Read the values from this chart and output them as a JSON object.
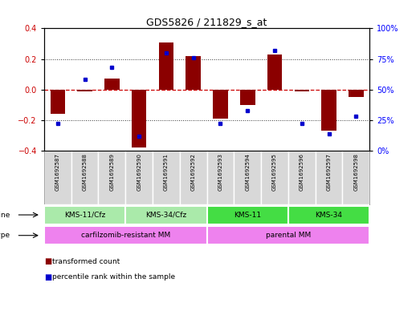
{
  "title": "GDS5826 / 211829_s_at",
  "samples": [
    "GSM1692587",
    "GSM1692588",
    "GSM1692589",
    "GSM1692590",
    "GSM1692591",
    "GSM1692592",
    "GSM1692593",
    "GSM1692594",
    "GSM1692595",
    "GSM1692596",
    "GSM1692597",
    "GSM1692598"
  ],
  "transformed_count": [
    -0.16,
    -0.01,
    0.07,
    -0.38,
    0.31,
    0.22,
    -0.19,
    -0.1,
    0.23,
    -0.01,
    -0.27,
    -0.05
  ],
  "percentile_rank": [
    22,
    58,
    68,
    12,
    80,
    76,
    22,
    33,
    82,
    22,
    14,
    28
  ],
  "cell_line_labels": [
    "KMS-11/Cfz",
    "KMS-34/Cfz",
    "KMS-11",
    "KMS-34"
  ],
  "cell_line_ranges": [
    [
      0,
      3
    ],
    [
      3,
      6
    ],
    [
      6,
      9
    ],
    [
      9,
      12
    ]
  ],
  "cell_line_colors": [
    "#aaeaaa",
    "#aaeaaa",
    "#44dd44",
    "#44dd44"
  ],
  "cell_type_labels": [
    "carfilzomib-resistant MM",
    "parental MM"
  ],
  "cell_type_ranges": [
    [
      0,
      6
    ],
    [
      6,
      12
    ]
  ],
  "cell_type_color": "#ee82ee",
  "bar_color": "#8B0000",
  "dot_color": "#0000CD",
  "ylim_left": [
    -0.4,
    0.4
  ],
  "ylim_right": [
    0,
    100
  ],
  "yticks_left": [
    -0.4,
    -0.2,
    0.0,
    0.2,
    0.4
  ],
  "yticks_right": [
    0,
    25,
    50,
    75,
    100
  ],
  "ytick_labels_right": [
    "0%",
    "25%",
    "50%",
    "75%",
    "100%"
  ],
  "sample_bg": "#d8d8d8",
  "zero_line_color": "#cc0000",
  "dotted_line_color": "#333333"
}
